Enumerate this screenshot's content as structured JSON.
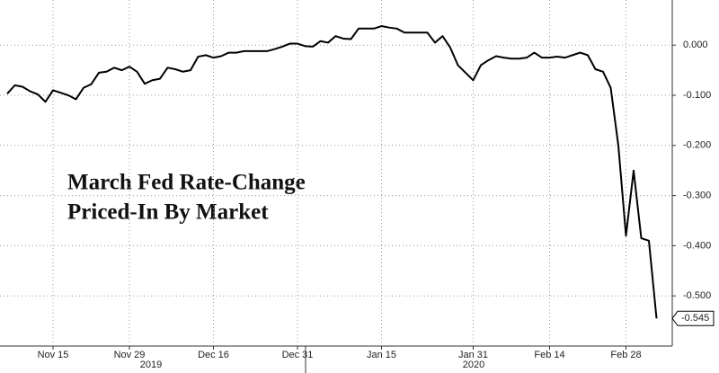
{
  "chart_data": {
    "type": "line",
    "title": [
      "March Fed Rate-Change",
      "Priced-In By Market"
    ],
    "categories": [
      null,
      null,
      null,
      null,
      null,
      null,
      "Nov 15",
      null,
      null,
      null,
      null,
      null,
      null,
      null,
      null,
      null,
      "Nov 29",
      null,
      null,
      null,
      null,
      null,
      null,
      null,
      null,
      null,
      null,
      "Dec 16",
      null,
      null,
      null,
      null,
      null,
      null,
      null,
      null,
      null,
      null,
      "Dec 31",
      null,
      null,
      null,
      null,
      null,
      null,
      null,
      null,
      null,
      null,
      "Jan 15",
      null,
      null,
      null,
      null,
      null,
      null,
      null,
      null,
      null,
      null,
      null,
      "Jan 31",
      null,
      null,
      null,
      null,
      null,
      null,
      null,
      null,
      null,
      "Feb 14",
      null,
      null,
      null,
      null,
      null,
      null,
      null,
      null,
      null,
      "Feb 28",
      null,
      null,
      null,
      null
    ],
    "year_labels": [
      "2019",
      "2020"
    ],
    "series": [
      {
        "color": "#000000",
        "values": [
          -0.097,
          -0.08,
          -0.083,
          -0.092,
          -0.098,
          -0.113,
          -0.09,
          -0.095,
          -0.1,
          -0.108,
          -0.085,
          -0.078,
          -0.055,
          -0.053,
          -0.045,
          -0.05,
          -0.043,
          -0.053,
          -0.077,
          -0.07,
          -0.067,
          -0.045,
          -0.048,
          -0.053,
          -0.05,
          -0.023,
          -0.02,
          -0.025,
          -0.022,
          -0.015,
          -0.015,
          -0.012,
          -0.012,
          -0.012,
          -0.012,
          -0.008,
          -0.003,
          0.003,
          0.003,
          -0.002,
          -0.003,
          0.008,
          0.005,
          0.018,
          0.013,
          0.012,
          0.033,
          0.033,
          0.033,
          0.038,
          0.035,
          0.033,
          0.025,
          0.025,
          0.025,
          0.025,
          0.005,
          0.018,
          -0.005,
          -0.04,
          -0.055,
          -0.07,
          -0.04,
          -0.03,
          -0.022,
          -0.025,
          -0.027,
          -0.027,
          -0.025,
          -0.015,
          -0.025,
          -0.025,
          -0.023,
          -0.025,
          -0.02,
          -0.015,
          -0.02,
          -0.048,
          -0.053,
          -0.085,
          -0.2,
          -0.38,
          -0.25,
          -0.385,
          -0.39,
          -0.545
        ],
        "value_labels": [
          null,
          null,
          null,
          null,
          null,
          null,
          null,
          null,
          null,
          null,
          null,
          null,
          null,
          null,
          null,
          null,
          null,
          null,
          null,
          null,
          null,
          null,
          null,
          null,
          null,
          null,
          null,
          null,
          null,
          null,
          null,
          null,
          null,
          null,
          null,
          null,
          null,
          null,
          null,
          null,
          null,
          null,
          null,
          null,
          null,
          null,
          null,
          null,
          null,
          null,
          null,
          null,
          null,
          null,
          null,
          null,
          null,
          null,
          null,
          null,
          null,
          null,
          null,
          null,
          null,
          null,
          null,
          null,
          null,
          null,
          null,
          null,
          null,
          null,
          null,
          null,
          null,
          null,
          null,
          null,
          null,
          null,
          null,
          null,
          null,
          "-0.545"
        ]
      }
    ],
    "ylim": [
      -0.6,
      0.09
    ],
    "yticks": [
      {
        "value": 0,
        "label": "0.000"
      },
      {
        "value": -0.1,
        "label": "-0.100"
      },
      {
        "value": -0.2,
        "label": "-0.200"
      },
      {
        "value": -0.3,
        "label": "-0.300"
      },
      {
        "value": -0.4,
        "label": "-0.400"
      },
      {
        "value": -0.5,
        "label": "-0.500"
      }
    ],
    "grid": true
  }
}
